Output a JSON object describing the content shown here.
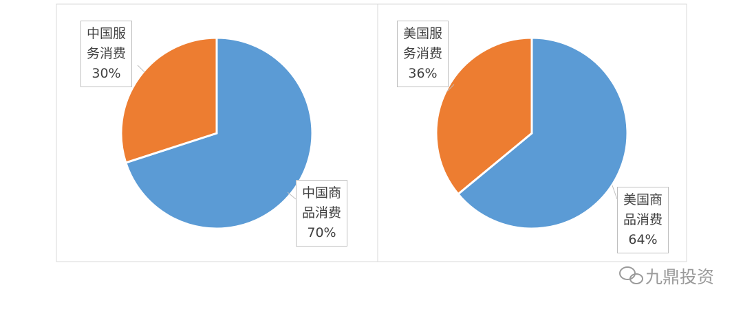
{
  "chart_data": [
    {
      "type": "pie",
      "categories": [
        "中国商品消费",
        "中国服务消费"
      ],
      "values": [
        70,
        30
      ],
      "value_labels": [
        "70%",
        "30%"
      ],
      "colors": [
        "#5b9bd5",
        "#ed7d31"
      ]
    },
    {
      "type": "pie",
      "categories": [
        "美国商品消费",
        "美国服务消费"
      ],
      "values": [
        64,
        36
      ],
      "value_labels": [
        "64%",
        "36%"
      ],
      "colors": [
        "#5b9bd5",
        "#ed7d31"
      ]
    }
  ],
  "watermark": "九鼎投资"
}
